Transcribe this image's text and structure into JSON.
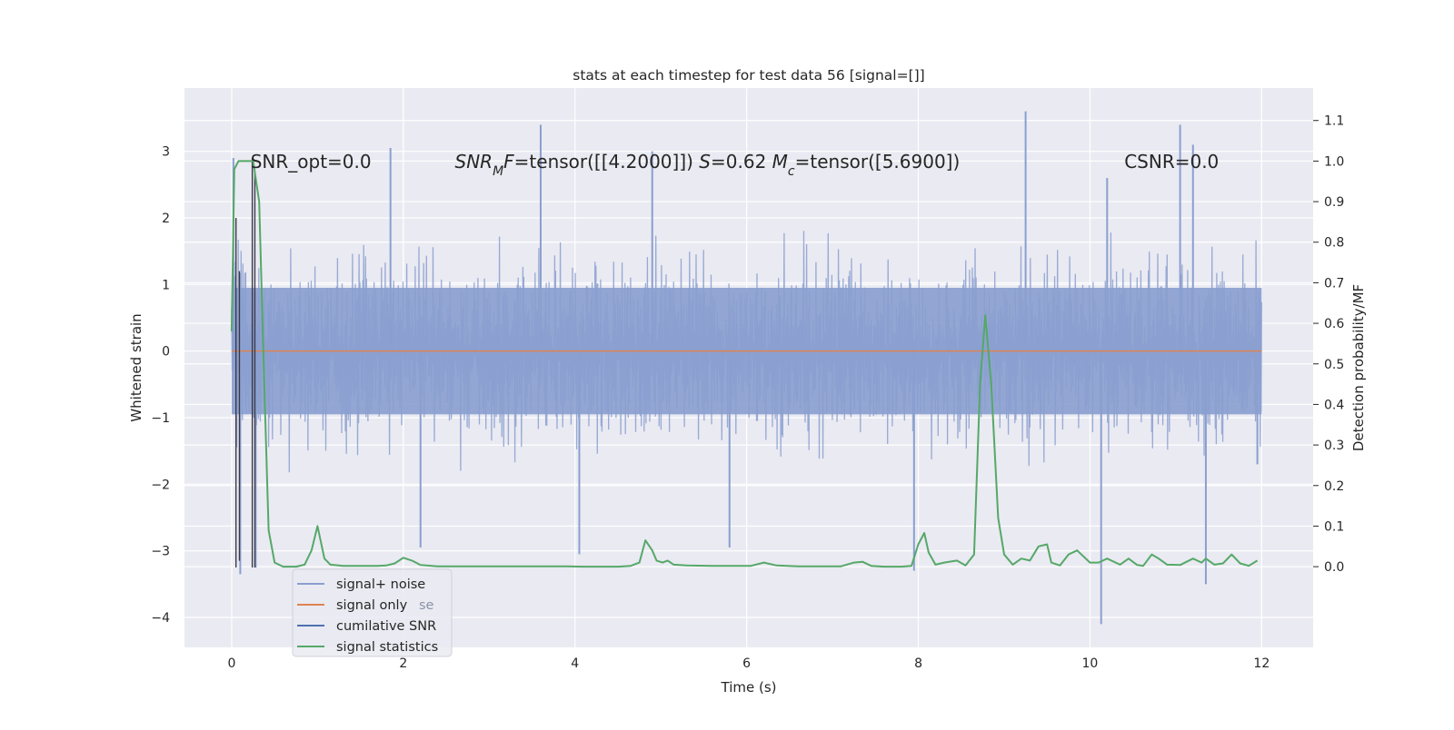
{
  "chart_data": {
    "type": "line",
    "title": "stats at each timestep for test data 56 [signal=[]]",
    "xlabel": "Time (s)",
    "ylabel": "Whitened strain",
    "y2label": "Detection probability/MF",
    "xlim": [
      -0.55,
      12.6
    ],
    "ylim": [
      -4.45,
      3.95
    ],
    "y2lim": [
      -0.199,
      1.18
    ],
    "x_ticks": [
      0,
      2,
      4,
      6,
      8,
      10,
      12
    ],
    "y_ticks": [
      3,
      2,
      1,
      0,
      -1,
      -2,
      -3,
      -4
    ],
    "y2_ticks": [
      1.1,
      1.0,
      0.9,
      0.8,
      0.7,
      0.6,
      0.5,
      0.4,
      0.3,
      0.2,
      0.1,
      0.0
    ],
    "x_tick_labels": [
      "0",
      "2",
      "4",
      "6",
      "8",
      "10",
      "12"
    ],
    "y_tick_labels": [
      "3",
      "2",
      "1",
      "0",
      "−1",
      "−2",
      "−3",
      "−4"
    ],
    "y2_tick_labels": [
      "1.1",
      "1.0",
      "0.9",
      "0.8",
      "0.7",
      "0.6",
      "0.5",
      "0.4",
      "0.3",
      "0.2",
      "0.1",
      "0.0"
    ],
    "grid": true,
    "legend_position": "lower-left",
    "series": [
      {
        "name": "signal+ noise",
        "axis": "left",
        "color": "#8a9fcf",
        "kind": "dense-noise",
        "x_range": [
          0,
          12
        ],
        "core_amplitude": 1.55,
        "upper_extremes": [
          [
            0.02,
            2.9
          ],
          [
            1.85,
            3.05
          ],
          [
            3.6,
            3.4
          ],
          [
            4.9,
            3.0
          ],
          [
            9.25,
            3.6
          ],
          [
            10.2,
            2.6
          ],
          [
            11.05,
            3.4
          ],
          [
            11.2,
            3.1
          ]
        ],
        "lower_extremes": [
          [
            0.1,
            -3.35
          ],
          [
            0.28,
            -3.25
          ],
          [
            2.2,
            -2.95
          ],
          [
            4.05,
            -3.05
          ],
          [
            5.8,
            -2.95
          ],
          [
            7.95,
            -3.3
          ],
          [
            10.13,
            -4.1
          ],
          [
            11.35,
            -3.5
          ],
          [
            11.95,
            -1.7
          ]
        ]
      },
      {
        "name": "signal only",
        "axis": "left",
        "color": "#dd8452",
        "x": [
          0,
          12
        ],
        "y": [
          0,
          0
        ]
      },
      {
        "name": "cumilative SNR",
        "axis": "left",
        "color": "#4c72b0",
        "x": [],
        "y": []
      },
      {
        "name": "signal statistics",
        "axis": "right",
        "color": "#55a868",
        "x": [
          0,
          0.03,
          0.08,
          0.15,
          0.25,
          0.32,
          0.38,
          0.43,
          0.5,
          0.6,
          0.75,
          0.85,
          0.93,
          1.0,
          1.08,
          1.15,
          1.3,
          1.5,
          1.7,
          1.8,
          1.9,
          2.0,
          2.1,
          2.2,
          2.4,
          2.8,
          3.2,
          3.6,
          3.9,
          4.1,
          4.3,
          4.5,
          4.65,
          4.75,
          4.82,
          4.9,
          4.95,
          5.02,
          5.08,
          5.15,
          5.3,
          5.6,
          5.9,
          6.05,
          6.2,
          6.35,
          6.6,
          6.9,
          7.1,
          7.25,
          7.35,
          7.45,
          7.6,
          7.8,
          7.92,
          8.0,
          8.07,
          8.12,
          8.2,
          8.3,
          8.45,
          8.55,
          8.65,
          8.72,
          8.78,
          8.85,
          8.93,
          9.0,
          9.1,
          9.2,
          9.3,
          9.4,
          9.5,
          9.55,
          9.65,
          9.75,
          9.85,
          10.0,
          10.1,
          10.2,
          10.35,
          10.45,
          10.55,
          10.62,
          10.72,
          10.8,
          10.9,
          11.05,
          11.2,
          11.3,
          11.35,
          11.45,
          11.55,
          11.65,
          11.75,
          11.85,
          11.95
        ],
        "y": [
          0.58,
          0.98,
          1.0,
          1.0,
          1.0,
          0.9,
          0.45,
          0.09,
          0.01,
          0.0,
          0.0,
          0.005,
          0.04,
          0.1,
          0.02,
          0.005,
          0.002,
          0.002,
          0.002,
          0.003,
          0.008,
          0.022,
          0.015,
          0.004,
          0.001,
          0.001,
          0.001,
          0.001,
          0.001,
          0.0,
          0.0,
          0.0,
          0.002,
          0.01,
          0.065,
          0.04,
          0.015,
          0.01,
          0.015,
          0.005,
          0.003,
          0.002,
          0.002,
          0.002,
          0.01,
          0.003,
          0.001,
          0.001,
          0.001,
          0.01,
          0.012,
          0.002,
          0.0,
          0.0,
          0.002,
          0.055,
          0.083,
          0.035,
          0.005,
          0.01,
          0.015,
          0.003,
          0.03,
          0.45,
          0.62,
          0.45,
          0.12,
          0.03,
          0.005,
          0.02,
          0.015,
          0.05,
          0.055,
          0.01,
          0.003,
          0.03,
          0.04,
          0.01,
          0.01,
          0.02,
          0.005,
          0.02,
          0.004,
          0.002,
          0.03,
          0.02,
          0.005,
          0.004,
          0.02,
          0.01,
          0.02,
          0.005,
          0.008,
          0.03,
          0.008,
          0.002,
          0.015
        ]
      }
    ],
    "spikes": {
      "color": "#3a3a4a",
      "x": [
        0.05,
        0.09,
        0.24,
        0.27
      ],
      "y_top": [
        2.0,
        1.2,
        2.9,
        2.7
      ],
      "y_bottom": [
        -3.25,
        -3.15,
        -3.25,
        -3.25
      ]
    },
    "annotations": [
      {
        "x": 0.22,
        "y": 2.75,
        "text": "SNR_opt=0.0",
        "math": false
      },
      {
        "x": 2.6,
        "y": 2.75,
        "text_parts": [
          {
            "t": "SNR",
            "italic": true
          },
          {
            "t": "M",
            "italic": true,
            "sub": true
          },
          {
            "t": "F",
            "italic": true
          },
          {
            "t": "=tensor([[4.2000]])  ",
            "italic": false
          },
          {
            "t": "S",
            "italic": true
          },
          {
            "t": "=0.62  ",
            "italic": false
          },
          {
            "t": "M",
            "italic": true
          },
          {
            "t": "c",
            "italic": true,
            "sub": true
          },
          {
            "t": "=tensor([5.6900])",
            "italic": false
          }
        ],
        "math": true
      },
      {
        "x": 10.4,
        "y": 2.75,
        "text": "CSNR=0.0",
        "math": false
      }
    ],
    "legend_ghost": {
      "text": "se",
      "color": "#8a94a6"
    },
    "background": "#eaeaf2",
    "grid_color": "#ffffff"
  }
}
